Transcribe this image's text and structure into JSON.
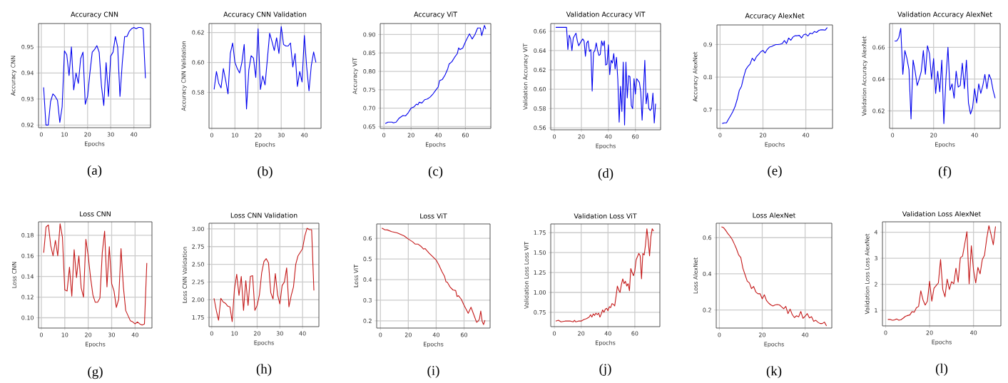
{
  "chart_data": [
    {
      "type": "line",
      "title": "Accuracy CNN",
      "xlabel": "Epochs",
      "ylabel": "Accuracy CNN",
      "annotations": [
        "(a)"
      ],
      "grid": true,
      "xlim": [
        -1.2,
        47.2
      ],
      "ylim": [
        0.919,
        0.959
      ],
      "xticks": [
        0,
        10,
        20,
        30,
        40
      ],
      "yticks": [
        0.92,
        0.93,
        0.94,
        0.95
      ],
      "x": [
        1,
        2,
        3,
        4,
        5,
        6,
        7,
        8,
        9,
        10,
        11,
        12,
        13,
        14,
        15,
        16,
        17,
        18,
        19,
        20,
        21,
        22,
        23,
        24,
        25,
        26,
        27,
        28,
        29,
        30,
        31,
        32,
        33,
        34,
        35,
        36,
        37,
        38,
        39,
        40,
        41,
        42,
        43,
        44,
        45
      ],
      "series": [
        {
          "color": "#0000ee",
          "values": [
            0.9345,
            0.92,
            0.92,
            0.929,
            0.932,
            0.931,
            0.9295,
            0.921,
            0.927,
            0.9485,
            0.947,
            0.939,
            0.95,
            0.9335,
            0.94,
            0.936,
            0.9455,
            0.948,
            0.928,
            0.931,
            0.94,
            0.948,
            0.949,
            0.9505,
            0.948,
            0.935,
            0.9275,
            0.944,
            0.931,
            0.9465,
            0.948,
            0.954,
            0.95,
            0.931,
            0.944,
            0.954,
            0.954,
            0.956,
            0.957,
            0.9575,
            0.957,
            0.9575,
            0.9575,
            0.957,
            0.938
          ]
        }
      ]
    },
    {
      "type": "line",
      "title": "Accuracy CNN Validation",
      "xlabel": "Epochs",
      "ylabel": "Accuracy CNN Validation",
      "annotations": [
        "(b)"
      ],
      "grid": true,
      "xlim": [
        -1.2,
        47.2
      ],
      "ylim": [
        0.556,
        0.626
      ],
      "xticks": [
        0,
        10,
        20,
        30,
        40
      ],
      "yticks": [
        0.58,
        {
          "value": 0.6,
          "label": "0.60"
        },
        0.62
      ],
      "x": [
        1,
        2,
        3,
        4,
        5,
        6,
        7,
        8,
        9,
        10,
        11,
        12,
        13,
        14,
        15,
        16,
        17,
        18,
        19,
        20,
        21,
        22,
        23,
        24,
        25,
        26,
        27,
        28,
        29,
        30,
        31,
        32,
        33,
        34,
        35,
        36,
        37,
        38,
        39,
        40,
        41,
        42,
        43,
        44,
        45
      ],
      "series": [
        {
          "color": "#0000ee",
          "values": [
            0.582,
            0.594,
            0.586,
            0.583,
            0.596,
            0.588,
            0.579,
            0.606,
            0.613,
            0.6,
            0.596,
            0.593,
            0.6,
            0.612,
            0.569,
            0.595,
            0.6045,
            0.603,
            0.59,
            0.6225,
            0.582,
            0.591,
            0.585,
            0.602,
            0.6195,
            0.614,
            0.608,
            0.6165,
            0.606,
            0.624,
            0.612,
            0.611,
            0.611,
            0.613,
            0.597,
            0.606,
            0.584,
            0.594,
            0.587,
            0.618,
            0.597,
            0.581,
            0.598,
            0.607,
            0.6
          ]
        }
      ]
    },
    {
      "type": "line",
      "title": "Accuracy ViT",
      "xlabel": "Epochs",
      "ylabel": "Accuracy ViT",
      "annotations": [
        "(c)"
      ],
      "grid": true,
      "xlim": [
        -2.7,
        78.7
      ],
      "ylim": [
        0.645,
        0.93
      ],
      "xticks": [
        0,
        20,
        40,
        60
      ],
      "yticks": [
        0.65,
        {
          "value": 0.7,
          "label": "0.70"
        },
        0.75,
        {
          "value": 0.8,
          "label": "0.80"
        },
        0.85,
        {
          "value": 0.9,
          "label": "0.90"
        }
      ],
      "x": [
        1,
        3,
        6,
        7,
        9,
        11,
        14,
        16,
        18,
        20,
        22,
        24,
        25,
        26,
        28,
        30,
        32,
        34,
        36,
        38,
        40,
        41,
        43,
        45,
        47,
        48,
        50,
        52,
        54,
        55,
        56,
        58,
        60,
        62,
        63,
        65,
        67,
        69,
        71,
        72,
        74,
        75
      ],
      "series": [
        {
          "color": "#0000ee",
          "values": [
            0.658,
            0.662,
            0.662,
            0.66,
            0.662,
            0.672,
            0.68,
            0.679,
            0.688,
            0.7,
            0.703,
            0.711,
            0.709,
            0.716,
            0.714,
            0.723,
            0.725,
            0.73,
            0.738,
            0.748,
            0.758,
            0.775,
            0.778,
            0.79,
            0.807,
            0.82,
            0.826,
            0.838,
            0.848,
            0.864,
            0.859,
            0.863,
            0.88,
            0.895,
            0.902,
            0.888,
            0.9,
            0.918,
            0.918,
            0.897,
            0.925,
            0.915
          ]
        }
      ]
    },
    {
      "type": "line",
      "title": "Validation Accuracy ViT",
      "xlabel": "Epochs",
      "ylabel": "Validation Accuracy ViT",
      "annotations": [
        "(d)"
      ],
      "grid": true,
      "xlim": [
        -2.7,
        78.7
      ],
      "ylim": [
        0.558,
        0.668
      ],
      "xticks": [
        0,
        20,
        40,
        60
      ],
      "yticks": [
        0.56,
        0.58,
        {
          "value": 0.6,
          "label": "0.60"
        },
        0.62,
        0.64,
        0.66
      ],
      "x": [
        1,
        9,
        10,
        11,
        12,
        13,
        14,
        16,
        17,
        18,
        20,
        21,
        22,
        23,
        24,
        25,
        26,
        27,
        28,
        29,
        30,
        31,
        32,
        33,
        34,
        35,
        36,
        37,
        38,
        39,
        40,
        41,
        42,
        43,
        44,
        45,
        46,
        47,
        48,
        49,
        50,
        51,
        52,
        53,
        54,
        55,
        56,
        57,
        58,
        59,
        60,
        61,
        63,
        64,
        65,
        66,
        67,
        68,
        69,
        70,
        71,
        72,
        73,
        74,
        75
      ],
      "series": [
        {
          "color": "#0000ee",
          "values": [
            0.664,
            0.664,
            0.641,
            0.656,
            0.652,
            0.64,
            0.653,
            0.658,
            0.65,
            0.645,
            0.65,
            0.652,
            0.65,
            0.634,
            0.648,
            0.65,
            0.639,
            0.641,
            0.598,
            0.638,
            0.64,
            0.648,
            0.64,
            0.635,
            0.636,
            0.65,
            0.645,
            0.65,
            0.625,
            0.626,
            0.646,
            0.615,
            0.63,
            0.627,
            0.637,
            0.621,
            0.633,
            0.61,
            0.566,
            0.603,
            0.577,
            0.628,
            0.563,
            0.628,
            0.591,
            0.614,
            0.613,
            0.583,
            0.58,
            0.611,
            0.595,
            0.611,
            0.607,
            0.597,
            0.568,
            0.598,
            0.63,
            0.585,
            0.596,
            0.58,
            0.578,
            0.58,
            0.596,
            0.565,
            0.585
          ]
        }
      ]
    },
    {
      "type": "line",
      "title": "Accuracy AlexNet",
      "xlabel": "Epochs",
      "ylabel": "Accuracy AlexNet",
      "annotations": [
        "(e)"
      ],
      "grid": true,
      "xlim": [
        -1.45,
        52.45
      ],
      "ylim": [
        0.643,
        0.96
      ],
      "xticks": [
        0,
        20,
        40
      ],
      "yticks": [
        0.7,
        0.8,
        0.9
      ],
      "x": [
        1,
        2,
        3,
        4,
        5,
        6,
        7,
        8,
        9,
        10,
        11,
        12,
        13,
        14,
        15,
        16,
        17,
        18,
        19,
        20,
        21,
        22,
        23,
        24,
        25,
        26,
        27,
        28,
        29,
        30,
        31,
        32,
        33,
        34,
        35,
        36,
        37,
        38,
        39,
        40,
        41,
        42,
        43,
        44,
        45,
        46,
        47,
        48,
        49,
        50
      ],
      "series": [
        {
          "color": "#0000ee",
          "values": [
            0.658,
            0.66,
            0.66,
            0.672,
            0.683,
            0.695,
            0.71,
            0.732,
            0.76,
            0.772,
            0.8,
            0.823,
            0.833,
            0.84,
            0.858,
            0.85,
            0.863,
            0.87,
            0.878,
            0.882,
            0.874,
            0.885,
            0.892,
            0.894,
            0.897,
            0.9,
            0.9,
            0.901,
            0.903,
            0.912,
            0.903,
            0.92,
            0.913,
            0.923,
            0.927,
            0.927,
            0.928,
            0.92,
            0.93,
            0.932,
            0.926,
            0.935,
            0.933,
            0.94,
            0.937,
            0.943,
            0.945,
            0.945,
            0.944,
            0.952
          ]
        }
      ]
    },
    {
      "type": "line",
      "title": "Validation Accuracy AlexNet",
      "xlabel": "Epochs",
      "ylabel": "Validation Accuracy AlexNet",
      "annotations": [
        "(f)"
      ],
      "grid": true,
      "xlim": [
        -1.45,
        52.45
      ],
      "ylim": [
        0.609,
        0.675
      ],
      "xticks": [
        0,
        20,
        40
      ],
      "yticks": [
        0.62,
        0.64,
        0.66
      ],
      "x": [
        1,
        2,
        3,
        4,
        5,
        6,
        7,
        8,
        9,
        10,
        11,
        12,
        13,
        14,
        15,
        16,
        17,
        18,
        19,
        20,
        21,
        22,
        23,
        24,
        25,
        26,
        27,
        28,
        29,
        30,
        31,
        32,
        33,
        34,
        35,
        36,
        37,
        38,
        39,
        40,
        41,
        42,
        43,
        44,
        45,
        46,
        47,
        48,
        49,
        50
      ],
      "series": [
        {
          "color": "#0000ee",
          "values": [
            0.664,
            0.664,
            0.666,
            0.672,
            0.643,
            0.658,
            0.653,
            0.646,
            0.615,
            0.652,
            0.645,
            0.636,
            0.64,
            0.645,
            0.658,
            0.643,
            0.661,
            0.656,
            0.64,
            0.653,
            0.631,
            0.645,
            0.632,
            0.652,
            0.612,
            0.64,
            0.66,
            0.633,
            0.637,
            0.628,
            0.645,
            0.635,
            0.636,
            0.65,
            0.634,
            0.652,
            0.625,
            0.618,
            0.622,
            0.634,
            0.625,
            0.637,
            0.631,
            0.636,
            0.643,
            0.634,
            0.643,
            0.64,
            0.633,
            0.628
          ]
        }
      ]
    },
    {
      "type": "line",
      "title": "Loss CNN",
      "xlabel": "Epochs",
      "ylabel": "Loss CNN",
      "annotations": [
        "(g)"
      ],
      "grid": true,
      "xlim": [
        -1.2,
        47.2
      ],
      "ylim": [
        0.09,
        0.193
      ],
      "xticks": [
        0,
        10,
        20,
        30,
        40
      ],
      "yticks": [
        {
          "value": 0.1,
          "label": "0.10"
        },
        0.12,
        0.14,
        0.16,
        0.18
      ],
      "x": [
        1,
        2,
        3,
        4,
        5,
        6,
        7,
        8,
        9,
        10,
        11,
        12,
        13,
        14,
        15,
        16,
        17,
        18,
        19,
        20,
        21,
        22,
        23,
        24,
        25,
        26,
        27,
        28,
        29,
        30,
        31,
        32,
        33,
        34,
        35,
        36,
        37,
        38,
        39,
        40,
        41,
        42,
        43,
        44,
        45
      ],
      "series": [
        {
          "color": "#c41818",
          "values": [
            0.163,
            0.188,
            0.19,
            0.17,
            0.16,
            0.175,
            0.16,
            0.191,
            0.178,
            0.127,
            0.126,
            0.149,
            0.121,
            0.166,
            0.139,
            0.16,
            0.129,
            0.12,
            0.176,
            0.16,
            0.139,
            0.122,
            0.115,
            0.115,
            0.119,
            0.163,
            0.184,
            0.13,
            0.169,
            0.133,
            0.126,
            0.11,
            0.118,
            0.167,
            0.13,
            0.107,
            0.102,
            0.097,
            0.096,
            0.094,
            0.096,
            0.094,
            0.093,
            0.094,
            0.153
          ]
        }
      ]
    },
    {
      "type": "line",
      "title": "Loss CNN Validation",
      "xlabel": "Epochs",
      "ylabel": "Loss CNN Validation",
      "annotations": [
        "(h)"
      ],
      "grid": true,
      "xlim": [
        -1.2,
        47.2
      ],
      "ylim": [
        1.62,
        3.08
      ],
      "xticks": [
        0,
        10,
        20,
        30,
        40
      ],
      "yticks": [
        1.75,
        {
          "value": 2,
          "label": "2.00"
        },
        2.25,
        {
          "value": 2.5,
          "label": "2.50"
        },
        2.75,
        {
          "value": 3,
          "label": "3.00"
        }
      ],
      "x": [
        1,
        2,
        3,
        4,
        5,
        6,
        7,
        8,
        9,
        10,
        11,
        12,
        13,
        14,
        15,
        16,
        17,
        18,
        19,
        20,
        21,
        22,
        23,
        24,
        25,
        26,
        27,
        28,
        29,
        30,
        31,
        32,
        33,
        34,
        35,
        36,
        37,
        38,
        39,
        40,
        41,
        42,
        43,
        44,
        45
      ],
      "series": [
        {
          "color": "#c41818",
          "values": [
            2.02,
            1.85,
            1.71,
            2.02,
            1.97,
            1.95,
            1.91,
            1.9,
            1.69,
            2.15,
            2.36,
            2.06,
            2.33,
            1.85,
            2.27,
            1.92,
            2.33,
            2.34,
            1.85,
            1.92,
            2.07,
            2.38,
            2.54,
            2.58,
            2.52,
            2.1,
            2.01,
            2.37,
            2.07,
            1.94,
            2.2,
            2.25,
            2.45,
            1.9,
            2.06,
            2.18,
            2.5,
            2.62,
            2.67,
            2.72,
            2.9,
            3.01,
            2.99,
            2.99,
            2.13
          ]
        }
      ]
    },
    {
      "type": "line",
      "title": "Loss ViT",
      "xlabel": "Epochs",
      "ylabel": "Loss ViT",
      "annotations": [
        "(i)"
      ],
      "grid": true,
      "xlim": [
        -2.7,
        78.7
      ],
      "ylim": [
        0.165,
        0.67
      ],
      "xticks": [
        0,
        20,
        40,
        60
      ],
      "yticks": [
        0.2,
        0.3,
        0.4,
        0.5,
        0.6
      ],
      "x": [
        1,
        3,
        5,
        8,
        10,
        12,
        15,
        17,
        20,
        23,
        25,
        27,
        29,
        31,
        32,
        33,
        35,
        37,
        40,
        42,
        44,
        46,
        47,
        48,
        50,
        52,
        54,
        55,
        56,
        58,
        60,
        62,
        63,
        65,
        67,
        69,
        70,
        71,
        72,
        73,
        74,
        75
      ],
      "series": [
        {
          "color": "#c41818",
          "values": [
            0.65,
            0.642,
            0.641,
            0.633,
            0.63,
            0.627,
            0.618,
            0.612,
            0.597,
            0.584,
            0.572,
            0.572,
            0.562,
            0.548,
            0.551,
            0.543,
            0.528,
            0.515,
            0.495,
            0.47,
            0.441,
            0.416,
            0.39,
            0.387,
            0.364,
            0.35,
            0.347,
            0.318,
            0.322,
            0.305,
            0.276,
            0.25,
            0.237,
            0.266,
            0.23,
            0.193,
            0.198,
            0.208,
            0.248,
            0.198,
            0.182,
            0.203
          ]
        }
      ]
    },
    {
      "type": "line",
      "title": "Validation Loss ViT",
      "xlabel": "Epochs",
      "ylabel": "Validation Loss Loss ViT",
      "annotations": [
        "(j)"
      ],
      "grid": true,
      "xlim": [
        -2.7,
        78.7
      ],
      "ylim": [
        0.57,
        1.86
      ],
      "xticks": [
        0,
        20,
        40,
        60
      ],
      "yticks": [
        0.75,
        {
          "value": 1,
          "label": "1.00"
        },
        1.25,
        {
          "value": 1.5,
          "label": "1.50"
        },
        1.75
      ],
      "x": [
        1,
        3,
        5,
        8,
        10,
        12,
        14,
        15,
        16,
        18,
        20,
        22,
        24,
        26,
        27,
        28,
        29,
        30,
        31,
        32,
        33,
        34,
        35,
        36,
        37,
        38,
        39,
        40,
        41,
        42,
        43,
        44,
        45,
        46,
        47,
        48,
        49,
        50,
        51,
        52,
        53,
        54,
        55,
        56,
        57,
        58,
        59,
        60,
        61,
        62,
        63,
        64,
        65,
        66,
        67,
        68,
        69,
        70,
        71,
        72,
        73,
        74
      ],
      "series": [
        {
          "color": "#c41818",
          "values": [
            0.64,
            0.65,
            0.63,
            0.64,
            0.64,
            0.64,
            0.63,
            0.65,
            0.63,
            0.64,
            0.64,
            0.66,
            0.67,
            0.69,
            0.72,
            0.69,
            0.73,
            0.71,
            0.74,
            0.72,
            0.74,
            0.69,
            0.73,
            0.78,
            0.75,
            0.79,
            0.8,
            0.77,
            0.82,
            0.81,
            0.86,
            0.85,
            0.83,
            0.95,
            1.08,
            1.03,
            1.0,
            1.1,
            1.17,
            1.11,
            1.14,
            1.08,
            1.11,
            1.02,
            1.3,
            1.25,
            1.21,
            1.27,
            1.41,
            1.45,
            1.49,
            1.46,
            1.17,
            1.49,
            1.47,
            1.6,
            1.8,
            1.65,
            1.46,
            1.7,
            1.8,
            1.77
          ]
        }
      ]
    },
    {
      "type": "line",
      "title": "Loss AlexNet",
      "xlabel": "Epochs",
      "ylabel": "Loss AlexNet",
      "annotations": [
        "(k)"
      ],
      "grid": true,
      "xlim": [
        -1.45,
        52.45
      ],
      "ylim": [
        0.1,
        0.68
      ],
      "xticks": [
        0,
        20,
        40
      ],
      "yticks": [
        0.2,
        0.4,
        0.6
      ],
      "x": [
        1,
        2,
        3,
        4,
        5,
        6,
        7,
        8,
        9,
        10,
        11,
        12,
        13,
        14,
        15,
        16,
        17,
        18,
        19,
        20,
        21,
        22,
        23,
        24,
        25,
        26,
        27,
        28,
        29,
        30,
        31,
        32,
        33,
        34,
        35,
        36,
        37,
        38,
        39,
        40,
        41,
        42,
        43,
        44,
        45,
        46,
        47,
        48,
        49,
        50
      ],
      "series": [
        {
          "color": "#c41818",
          "values": [
            0.66,
            0.655,
            0.64,
            0.622,
            0.608,
            0.59,
            0.565,
            0.538,
            0.505,
            0.49,
            0.43,
            0.395,
            0.36,
            0.35,
            0.318,
            0.33,
            0.3,
            0.29,
            0.29,
            0.262,
            0.284,
            0.252,
            0.238,
            0.228,
            0.222,
            0.228,
            0.23,
            0.228,
            0.218,
            0.207,
            0.22,
            0.18,
            0.205,
            0.175,
            0.158,
            0.168,
            0.162,
            0.192,
            0.154,
            0.165,
            0.18,
            0.156,
            0.163,
            0.137,
            0.143,
            0.132,
            0.125,
            0.125,
            0.133,
            0.112
          ]
        }
      ]
    },
    {
      "type": "line",
      "title": "Validation Loss AlexNet",
      "xlabel": "Epochs",
      "ylabel": "Validation Loss Loss AlexNet",
      "annotations": [
        "(l)"
      ],
      "grid": true,
      "xlim": [
        -1.45,
        52.45
      ],
      "ylim": [
        0.4,
        4.4
      ],
      "xticks": [
        0,
        20,
        40
      ],
      "yticks": [
        1,
        2,
        3,
        4
      ],
      "x": [
        1,
        2,
        3,
        4,
        5,
        6,
        7,
        8,
        9,
        10,
        11,
        12,
        13,
        14,
        15,
        16,
        17,
        18,
        19,
        20,
        21,
        22,
        23,
        24,
        25,
        26,
        27,
        28,
        29,
        30,
        31,
        32,
        33,
        34,
        35,
        36,
        37,
        38,
        39,
        40,
        41,
        42,
        43,
        44,
        45,
        46,
        47,
        48,
        49,
        50
      ],
      "series": [
        {
          "color": "#c41818",
          "values": [
            0.65,
            0.65,
            0.62,
            0.63,
            0.67,
            0.62,
            0.64,
            0.7,
            0.77,
            0.8,
            0.82,
            0.95,
            0.93,
            1.1,
            1.15,
            1.75,
            1.4,
            1.2,
            1.35,
            2.12,
            1.35,
            1.85,
            1.95,
            2.05,
            2.95,
            1.8,
            1.52,
            2.2,
            1.8,
            2.1,
            2.02,
            2.62,
            2.08,
            3.02,
            3.08,
            3.55,
            4.02,
            2.02,
            3.48,
            2.55,
            2.05,
            2.65,
            2.4,
            2.95,
            3.12,
            3.75,
            4.25,
            3.9,
            3.52,
            4.22
          ]
        }
      ]
    }
  ]
}
